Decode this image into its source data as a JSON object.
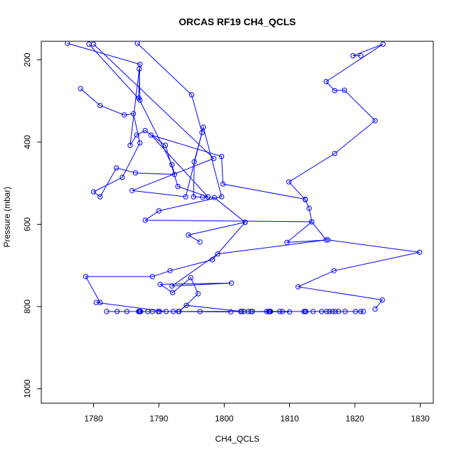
{
  "chart_data": {
    "type": "line",
    "title": "ORCAS RF19 CH4_QCLS",
    "xlabel": "CH4_QCLS",
    "ylabel": "Pressure (mbar)",
    "xlim": [
      1772,
      1832
    ],
    "ylim": [
      1035,
      155
    ],
    "y_reversed": true,
    "grid": false,
    "x_ticks": [
      1780,
      1790,
      1800,
      1810,
      1820,
      1830
    ],
    "y_ticks": [
      200,
      400,
      600,
      800,
      1000
    ],
    "series": [
      {
        "color": "#0000ff",
        "marker": "open-circle",
        "points": [
          [
            1820.9,
            190
          ],
          [
            1819.7,
            190
          ],
          [
            1824.3,
            162
          ],
          [
            1815.6,
            253
          ],
          [
            1816.9,
            275
          ],
          [
            1818.4,
            274
          ],
          [
            1823.1,
            348
          ],
          [
            1816.9,
            428
          ],
          [
            1809.9,
            497
          ],
          [
            1812.4,
            540
          ],
          [
            1813.0,
            561
          ],
          [
            1813.4,
            594
          ],
          [
            1809.6,
            644
          ],
          [
            1815.9,
            638
          ],
          [
            1829.9,
            668
          ],
          [
            1816.8,
            713
          ],
          [
            1811.3,
            752
          ],
          [
            1824.2,
            784
          ],
          [
            1823.1,
            806
          ]
        ]
      },
      {
        "color": "#0000ff",
        "marker": "open-circle",
        "points": [
          [
            1786.7,
            160
          ],
          [
            1795.0,
            285
          ],
          [
            1796.6,
            377
          ],
          [
            1795.4,
            448
          ],
          [
            1795.3,
            533
          ],
          [
            1796.7,
            534
          ],
          [
            1798.5,
            535
          ],
          [
            1803.2,
            595
          ],
          [
            1798.2,
            686
          ],
          [
            1791.7,
            713
          ],
          [
            1789.0,
            727
          ],
          [
            1778.8,
            727
          ],
          [
            1781.0,
            790
          ],
          [
            1780.4,
            790
          ],
          [
            1791.1,
            812
          ],
          [
            1787.0,
            812
          ],
          [
            1782.0,
            812
          ],
          [
            1789.9,
            812
          ],
          [
            1801.0,
            813
          ]
        ]
      },
      {
        "color": "#0000ff",
        "marker": "open-circle",
        "points": [
          [
            1776.0,
            160
          ],
          [
            1787.1,
            211
          ],
          [
            1786.9,
            293
          ],
          [
            1792.0,
            455
          ],
          [
            1792.4,
            479
          ],
          [
            1786.4,
            475
          ],
          [
            1783.5,
            463
          ],
          [
            1781.0,
            533
          ],
          [
            1780.0,
            521
          ],
          [
            1784.4,
            486
          ],
          [
            1787.1,
            402
          ],
          [
            1786.1,
            331
          ],
          [
            1784.7,
            334
          ],
          [
            1781.0,
            311
          ],
          [
            1778.0,
            270
          ]
        ]
      },
      {
        "color": "#0000ff",
        "marker": "open-circle",
        "points": [
          [
            1779.3,
            162
          ],
          [
            1787.1,
            298
          ],
          [
            1787.0,
            222
          ],
          [
            1785.6,
            408
          ],
          [
            1786.6,
            383
          ],
          [
            1787.9,
            372
          ],
          [
            1791.0,
            408
          ],
          [
            1792.9,
            508
          ],
          [
            1797.5,
            533
          ],
          [
            1788.8,
            383
          ],
          [
            1799.6,
            435
          ],
          [
            1799.8,
            502
          ],
          [
            1812.4,
            539
          ]
        ]
      },
      {
        "color": "#0000ff",
        "marker": "open-circle",
        "points": [
          [
            1780.0,
            162
          ],
          [
            1798.4,
            440
          ],
          [
            1785.9,
            518
          ],
          [
            1794.1,
            533
          ],
          [
            1796.8,
            364
          ],
          [
            1799.6,
            533
          ],
          [
            1790.0,
            567
          ],
          [
            1787.9,
            590
          ],
          [
            1813.4,
            594
          ],
          [
            1815.6,
            638
          ],
          [
            1799.0,
            672
          ],
          [
            1792.0,
            750
          ],
          [
            1801.1,
            743
          ],
          [
            1790.2,
            746
          ],
          [
            1792.1,
            766
          ],
          [
            1794.9,
            730
          ],
          [
            1796.0,
            769
          ],
          [
            1793.1,
            812
          ],
          [
            1794.2,
            797
          ],
          [
            1802.7,
            812
          ],
          [
            1810.0,
            813
          ],
          [
            1806.8,
            812
          ],
          [
            1807.0,
            812
          ]
        ]
      },
      {
        "color": "#0000ff",
        "marker": "open-circle",
        "points": [
          [
            1803.2,
            595
          ],
          [
            1794.5,
            626
          ],
          [
            1796.3,
            643
          ]
        ]
      },
      {
        "color": "#0000ff",
        "marker": "open-circle",
        "points": [
          [
            1783.6,
            812
          ],
          [
            1785.1,
            812
          ],
          [
            1786.9,
            812
          ],
          [
            1787.1,
            812
          ],
          [
            1787.2,
            812
          ],
          [
            1788.3,
            812
          ],
          [
            1789.0,
            812
          ],
          [
            1790.1,
            812
          ],
          [
            1792.2,
            812
          ],
          [
            1793.0,
            812
          ],
          [
            1796.3,
            812
          ],
          [
            1802.5,
            812
          ],
          [
            1803.0,
            812
          ],
          [
            1803.7,
            812
          ],
          [
            1804.1,
            812
          ],
          [
            1804.3,
            812
          ],
          [
            1806.5,
            812
          ],
          [
            1806.9,
            812
          ],
          [
            1807.1,
            812
          ],
          [
            1808.5,
            812
          ],
          [
            1808.9,
            812
          ],
          [
            1812.2,
            812
          ],
          [
            1812.4,
            812
          ],
          [
            1812.5,
            812
          ],
          [
            1813.6,
            812
          ],
          [
            1814.9,
            812
          ],
          [
            1815.7,
            812
          ],
          [
            1816.1,
            812
          ],
          [
            1816.6,
            812
          ],
          [
            1817.0,
            812
          ],
          [
            1817.5,
            812
          ],
          [
            1818.5,
            812
          ],
          [
            1820.1,
            812
          ],
          [
            1820.9,
            812
          ],
          [
            1821.3,
            812
          ]
        ]
      }
    ]
  }
}
